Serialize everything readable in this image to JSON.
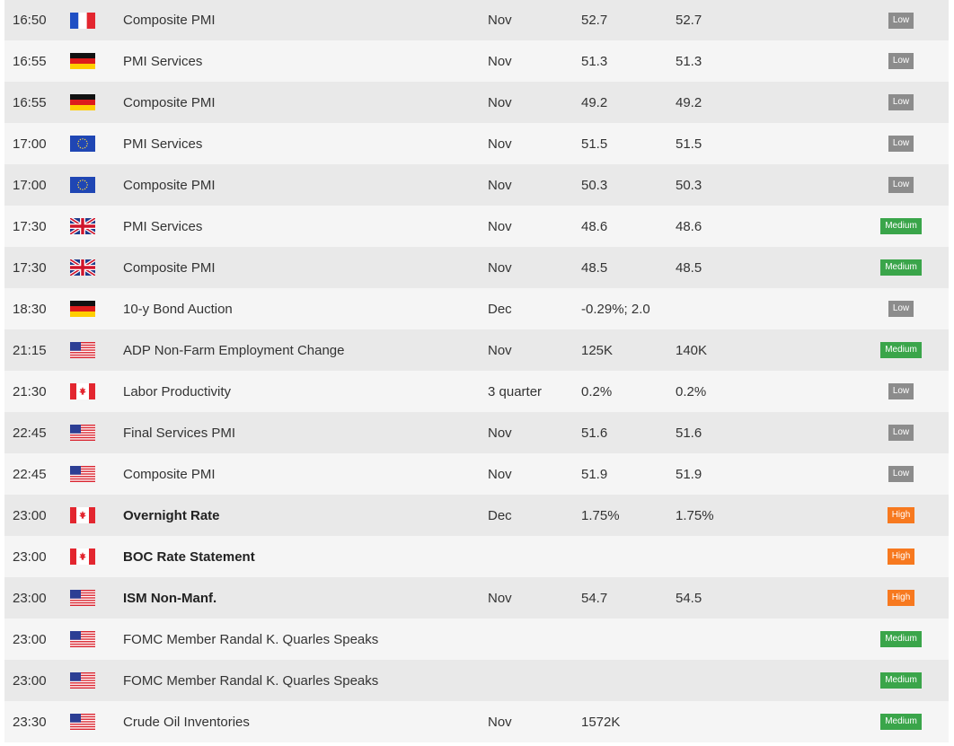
{
  "colors": {
    "low": "#8c8c8c",
    "medium": "#3aa54a",
    "high": "#f7791f"
  },
  "rows": [
    {
      "time": "16:50",
      "flag": "fr-flag-icon",
      "event": "Composite PMI",
      "bold": false,
      "period": "Nov",
      "actual": "52.7",
      "forecast": "52.7",
      "impact": "Low",
      "impact_level": "low"
    },
    {
      "time": "16:55",
      "flag": "de-flag-icon",
      "event": "PMI Services",
      "bold": false,
      "period": "Nov",
      "actual": "51.3",
      "forecast": "51.3",
      "impact": "Low",
      "impact_level": "low"
    },
    {
      "time": "16:55",
      "flag": "de-flag-icon",
      "event": "Composite PMI",
      "bold": false,
      "period": "Nov",
      "actual": "49.2",
      "forecast": "49.2",
      "impact": "Low",
      "impact_level": "low"
    },
    {
      "time": "17:00",
      "flag": "eu-flag-icon",
      "event": "PMI Services",
      "bold": false,
      "period": "Nov",
      "actual": "51.5",
      "forecast": "51.5",
      "impact": "Low",
      "impact_level": "low"
    },
    {
      "time": "17:00",
      "flag": "eu-flag-icon",
      "event": "Composite PMI",
      "bold": false,
      "period": "Nov",
      "actual": "50.3",
      "forecast": "50.3",
      "impact": "Low",
      "impact_level": "low"
    },
    {
      "time": "17:30",
      "flag": "uk-flag-icon",
      "event": "PMI Services",
      "bold": false,
      "period": "Nov",
      "actual": "48.6",
      "forecast": "48.6",
      "impact": "Medium",
      "impact_level": "medium"
    },
    {
      "time": "17:30",
      "flag": "uk-flag-icon",
      "event": "Composite PMI",
      "bold": false,
      "period": "Nov",
      "actual": "48.5",
      "forecast": "48.5",
      "impact": "Medium",
      "impact_level": "medium"
    },
    {
      "time": "18:30",
      "flag": "de-flag-icon",
      "event": "10-y Bond Auction",
      "bold": false,
      "period": "Dec",
      "actual": "-0.29%; 2.0",
      "forecast": "",
      "impact": "Low",
      "impact_level": "low"
    },
    {
      "time": "21:15",
      "flag": "us-flag-icon",
      "event": "ADP Non-Farm Employment Change",
      "bold": false,
      "period": "Nov",
      "actual": "125K",
      "forecast": "140K",
      "impact": "Medium",
      "impact_level": "medium"
    },
    {
      "time": "21:30",
      "flag": "ca-flag-icon",
      "event": "Labor Productivity",
      "bold": false,
      "period": "3 quarter",
      "actual": "0.2%",
      "forecast": "0.2%",
      "impact": "Low",
      "impact_level": "low"
    },
    {
      "time": "22:45",
      "flag": "us-flag-icon",
      "event": "Final Services PMI",
      "bold": false,
      "period": "Nov",
      "actual": "51.6",
      "forecast": "51.6",
      "impact": "Low",
      "impact_level": "low"
    },
    {
      "time": "22:45",
      "flag": "us-flag-icon",
      "event": "Composite PMI",
      "bold": false,
      "period": "Nov",
      "actual": "51.9",
      "forecast": "51.9",
      "impact": "Low",
      "impact_level": "low"
    },
    {
      "time": "23:00",
      "flag": "ca-flag-icon",
      "event": "Overnight Rate",
      "bold": true,
      "period": "Dec",
      "actual": "1.75%",
      "forecast": "1.75%",
      "impact": "High",
      "impact_level": "high"
    },
    {
      "time": "23:00",
      "flag": "ca-flag-icon",
      "event": "BOC Rate Statement",
      "bold": true,
      "period": "",
      "actual": "",
      "forecast": "",
      "impact": "High",
      "impact_level": "high"
    },
    {
      "time": "23:00",
      "flag": "us-flag-icon",
      "event": "ISM Non-Manf.",
      "bold": true,
      "period": "Nov",
      "actual": "54.7",
      "forecast": "54.5",
      "impact": "High",
      "impact_level": "high"
    },
    {
      "time": "23:00",
      "flag": "us-flag-icon",
      "event": "FOMC Member Randal K. Quarles Speaks",
      "bold": false,
      "period": "",
      "actual": "",
      "forecast": "",
      "impact": "Medium",
      "impact_level": "medium"
    },
    {
      "time": "23:00",
      "flag": "us-flag-icon",
      "event": "FOMC Member Randal K. Quarles Speaks",
      "bold": false,
      "period": "",
      "actual": "",
      "forecast": "",
      "impact": "Medium",
      "impact_level": "medium"
    },
    {
      "time": "23:30",
      "flag": "us-flag-icon",
      "event": "Crude Oil Inventories",
      "bold": false,
      "period": "Nov",
      "actual": "1572K",
      "forecast": "",
      "impact": "Medium",
      "impact_level": "medium"
    }
  ]
}
